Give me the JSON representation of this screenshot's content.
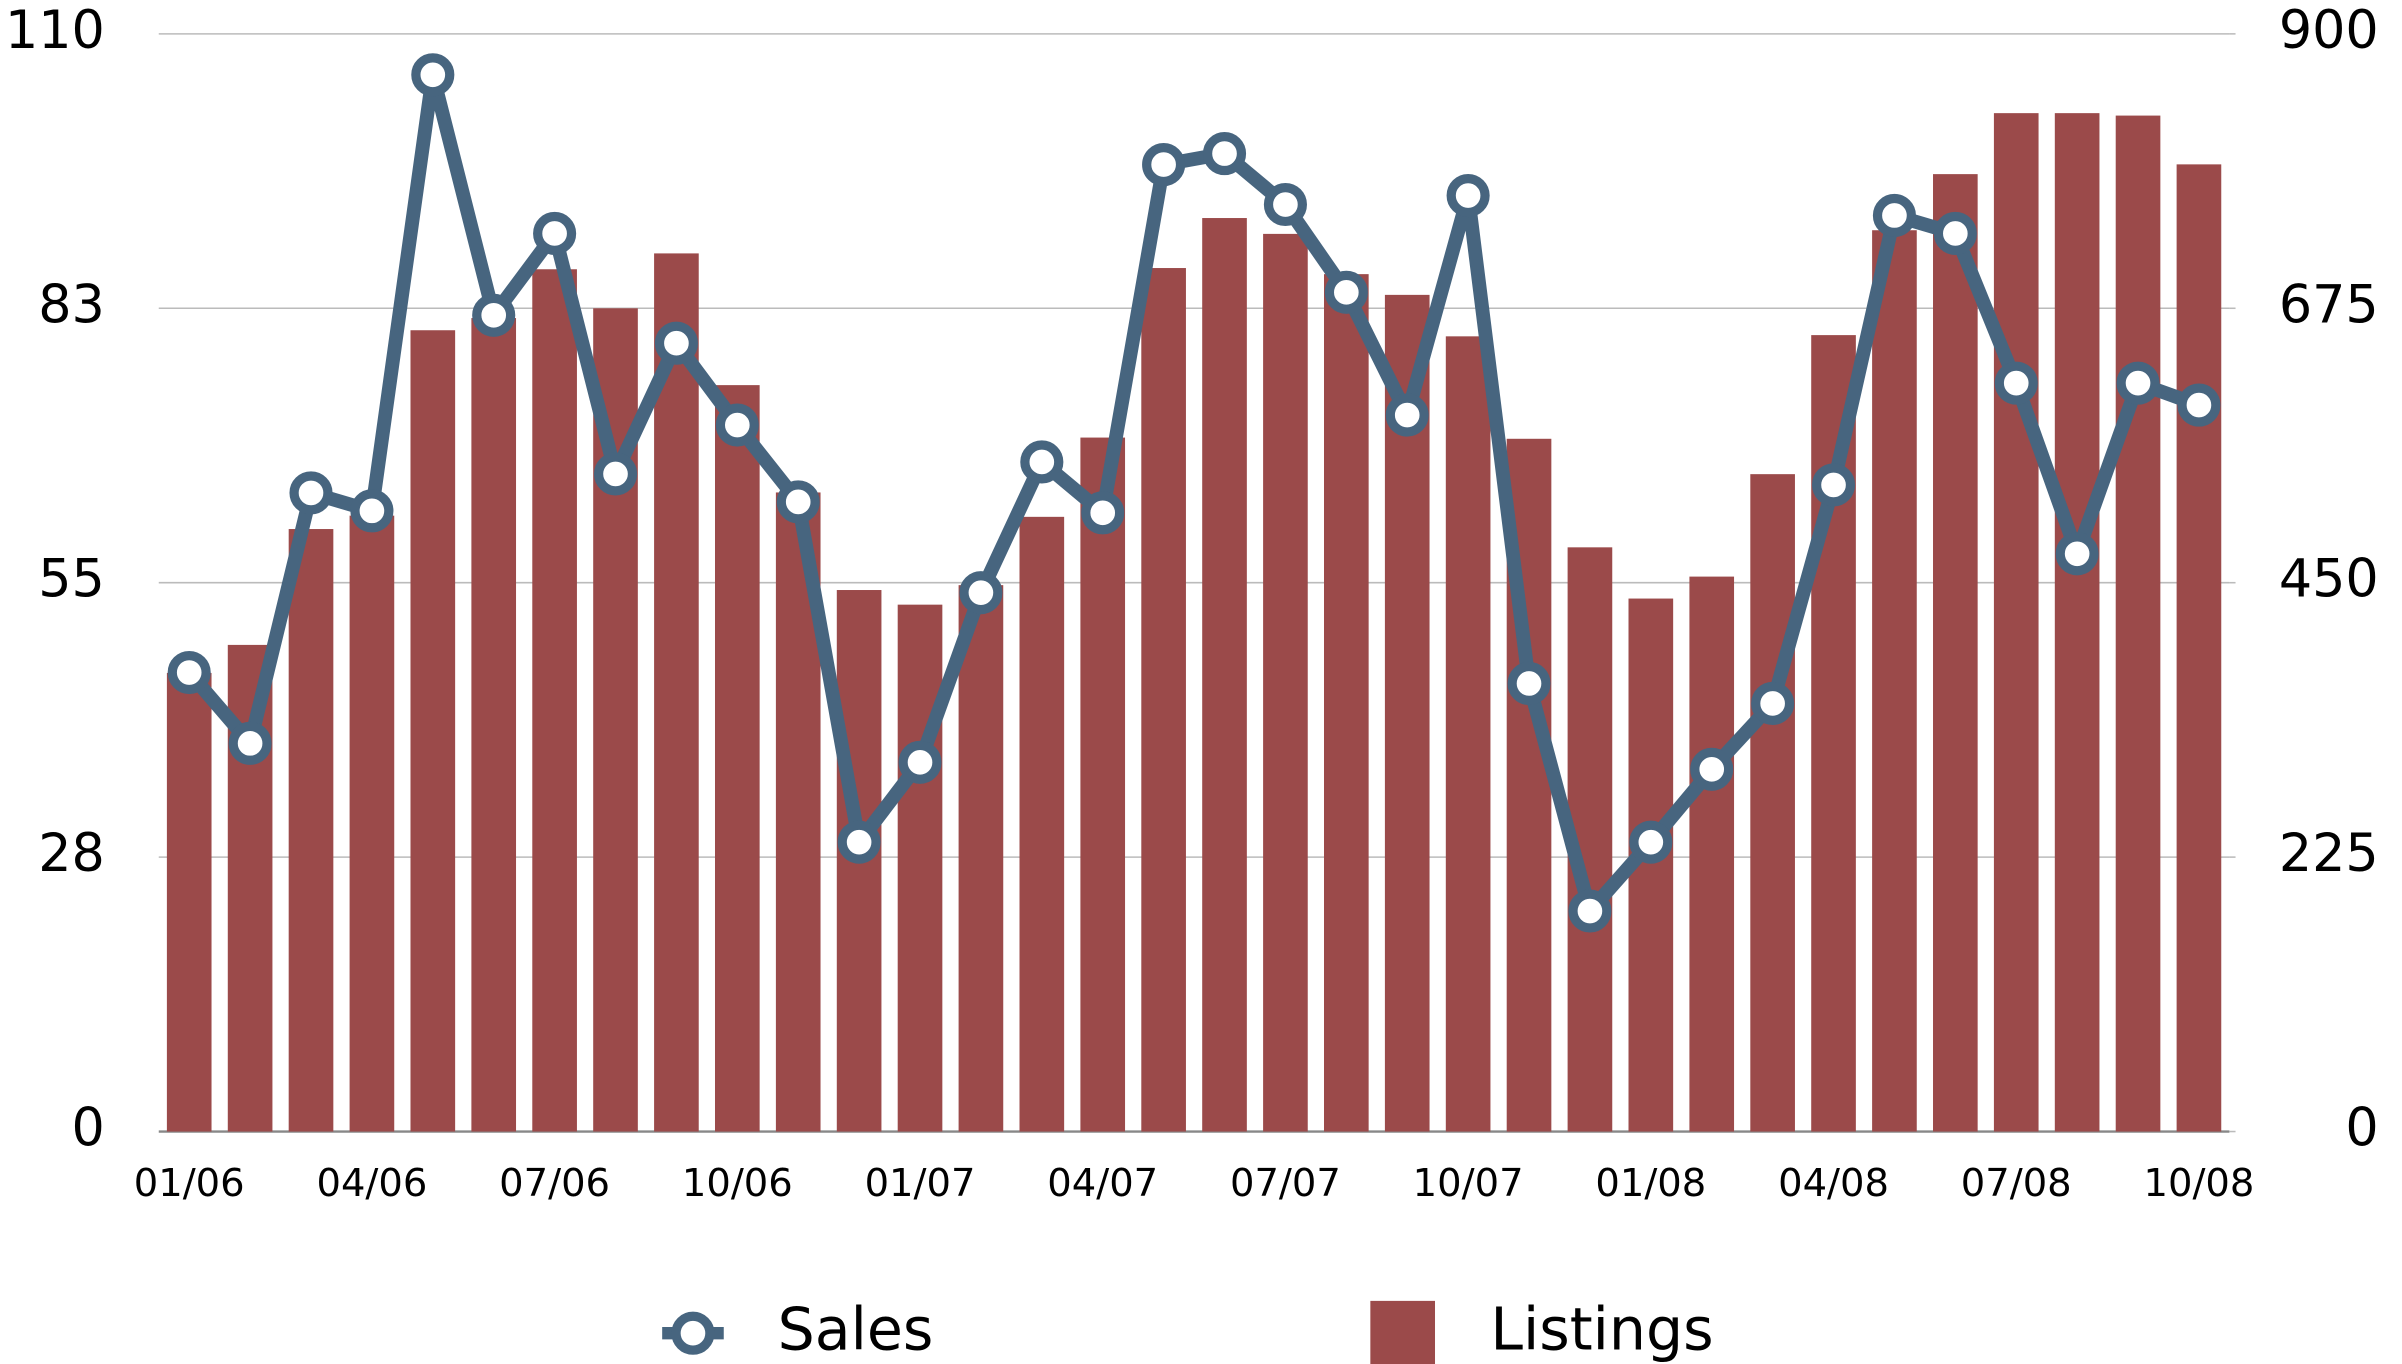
{
  "chart_data": {
    "type": "bar-line",
    "categories": [
      "01/06",
      null,
      null,
      "04/06",
      null,
      null,
      "07/06",
      null,
      null,
      "10/06",
      null,
      null,
      "01/07",
      null,
      null,
      "04/07",
      null,
      null,
      "07/07",
      null,
      null,
      "10/07",
      null,
      null,
      "01/08",
      null,
      null,
      "04/08",
      null,
      null,
      "07/08",
      null,
      null,
      "10/08"
    ],
    "series": [
      {
        "name": "Sales",
        "type": "line",
        "axis": "y",
        "color": "#47657f",
        "values": [
          46.0,
          38.9,
          64.0,
          62.2,
          105.9,
          81.8,
          90.0,
          65.9,
          79.0,
          70.8,
          63.1,
          29.0,
          37.0,
          54.0,
          67.1,
          62.0,
          96.9,
          98.0,
          92.9,
          84.1,
          71.8,
          93.8,
          44.9,
          22.1,
          29.0,
          36.3,
          42.9,
          64.8,
          91.8,
          90.0,
          75.0,
          57.9,
          75.0,
          72.8
        ]
      },
      {
        "name": "Listings",
        "type": "bar",
        "axis": "y2",
        "color": "#9b4a4a",
        "values": [
          376,
          399,
          494,
          505,
          657,
          667,
          707,
          675,
          720,
          612,
          524,
          444,
          432,
          448,
          504,
          569,
          708,
          749,
          736,
          703,
          686,
          652,
          568,
          479,
          437,
          455,
          539,
          653,
          739,
          785,
          835,
          835,
          833,
          793
        ]
      }
    ],
    "ylim": [
      0,
      110
    ],
    "yticks": [
      0,
      {
        "value": 27.5,
        "label": "28"
      },
      55,
      {
        "value": 82.5,
        "label": "83"
      },
      110
    ],
    "y2lim": [
      0,
      900
    ],
    "y2ticks": [
      0,
      225,
      450,
      675,
      900
    ],
    "grid": true,
    "legend": "bottom"
  }
}
